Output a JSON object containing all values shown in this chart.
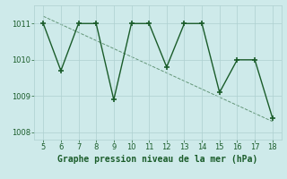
{
  "x": [
    5,
    6,
    7,
    8,
    9,
    10,
    11,
    12,
    13,
    14,
    15,
    16,
    17,
    18
  ],
  "y": [
    1011.0,
    1009.7,
    1011.0,
    1011.0,
    1008.9,
    1011.0,
    1011.0,
    1009.8,
    1011.0,
    1011.0,
    1009.1,
    1010.0,
    1010.0,
    1008.4
  ],
  "line_color": "#1a5c2a",
  "marker": "+",
  "marker_size": 4,
  "marker_color": "#1a5c2a",
  "bg_color": "#ceeaea",
  "grid_color": "#aed0d0",
  "xlabel": "Graphe pression niveau de la mer (hPa)",
  "xlabel_fontsize": 7,
  "xlabel_color": "#1a5c2a",
  "ylabel_ticks": [
    1008,
    1009,
    1010,
    1011
  ],
  "xlim": [
    4.5,
    18.5
  ],
  "ylim": [
    1007.8,
    1011.5
  ],
  "xticks": [
    5,
    6,
    7,
    8,
    9,
    10,
    11,
    12,
    13,
    14,
    15,
    16,
    17,
    18
  ],
  "tick_fontsize": 6,
  "tick_color": "#1a5c2a",
  "linewidth": 1.0,
  "trend_x": [
    5,
    18
  ],
  "trend_y": [
    1011.2,
    1008.3
  ]
}
